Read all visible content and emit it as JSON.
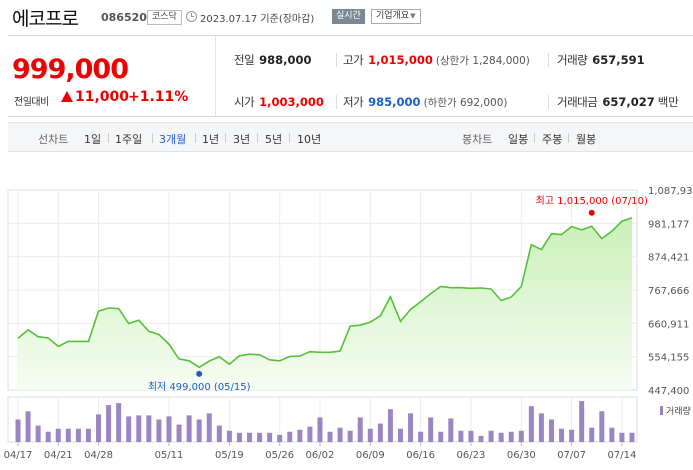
{
  "header": {
    "stock_name": "에코프로",
    "stock_code": "086520",
    "market": "코스닥",
    "date": "2023.07.17  기준(장마감)",
    "realtime": "실시간",
    "company_info": "기업개요"
  },
  "price": {
    "current": "999,000",
    "change_label": "전일대비",
    "change_amount": "11,000",
    "change_percent": "+1.11%",
    "direction": "up"
  },
  "quote": {
    "prev_close_label": "전일",
    "prev_close": "988,000",
    "high_label": "고가",
    "high": "1,015,000",
    "upper_limit": "(상한가 1,284,000)",
    "volume_label": "거래량",
    "volume": "657,591",
    "open_label": "시가",
    "open": "1,003,000",
    "low_label": "저가",
    "low": "985,000",
    "lower_limit": "(하한가 692,000)",
    "value_label": "거래대금",
    "value": "657,027",
    "value_unit": "백만"
  },
  "period_bar": {
    "line_chart_label": "선차트",
    "line_periods": [
      "1일",
      "1주일",
      "3개월",
      "1년",
      "3년",
      "5년",
      "10년"
    ],
    "active_period": "3개월",
    "candle_chart_label": "봉차트",
    "candle_periods": [
      "일봉",
      "주봉",
      "월봉"
    ]
  },
  "colors": {
    "up": "#ee0000",
    "down": "#1a5fc9",
    "line": "#55c038",
    "fill_top": "#c9f0b8",
    "fill_bottom": "#f7fdf4",
    "volume_bar": "#9b86c4"
  },
  "chart_data": {
    "type": "area",
    "y_ticks": [
      "1,087,932",
      "981,177",
      "874,421",
      "767,666",
      "660,911",
      "554,155",
      "447,400"
    ],
    "ylim": [
      447400,
      1087932
    ],
    "grid": true,
    "x_ticks": [
      {
        "label": "04/17",
        "i": 0
      },
      {
        "label": "04/21",
        "i": 4
      },
      {
        "label": "04/28",
        "i": 8
      },
      {
        "label": "05/11",
        "i": 15
      },
      {
        "label": "05/19",
        "i": 21
      },
      {
        "label": "05/26",
        "i": 26
      },
      {
        "label": "06/02",
        "i": 30
      },
      {
        "label": "06/09",
        "i": 35
      },
      {
        "label": "06/16",
        "i": 40
      },
      {
        "label": "06/23",
        "i": 45
      },
      {
        "label": "06/30",
        "i": 50
      },
      {
        "label": "07/07",
        "i": 55
      },
      {
        "label": "07/14",
        "i": 60
      }
    ],
    "values": [
      613000,
      640000,
      618000,
      614000,
      587000,
      603000,
      603000,
      603000,
      700000,
      710000,
      708000,
      660000,
      671000,
      635000,
      625000,
      594000,
      547000,
      541000,
      520000,
      540000,
      554000,
      530000,
      557000,
      562000,
      560000,
      544000,
      541000,
      555000,
      556000,
      570000,
      568000,
      568000,
      572000,
      652000,
      655000,
      665000,
      685000,
      746000,
      667000,
      706000,
      730000,
      756000,
      779000,
      775000,
      775000,
      773000,
      774000,
      771000,
      734000,
      745000,
      779000,
      913000,
      897000,
      948000,
      945000,
      971000,
      960000,
      972000,
      932000,
      956000,
      988000,
      999000
    ],
    "max_annotation": "최고 1,015,000 (07/10)",
    "max_value": 1015000,
    "max_index": 57,
    "min_annotation": "최저 499,000 (05/15)",
    "min_value": 499000,
    "min_index": 18,
    "volume_legend": "거래량",
    "volumes": [
      22,
      30,
      16,
      10,
      13,
      13,
      13,
      13,
      27,
      36,
      38,
      25,
      26,
      26,
      22,
      25,
      17,
      26,
      22,
      28,
      16,
      11,
      9,
      9,
      9,
      9,
      7,
      10,
      12,
      15,
      24,
      10,
      14,
      11,
      24,
      13,
      18,
      32,
      13,
      28,
      10,
      24,
      10,
      23,
      11,
      11,
      6,
      11,
      9,
      10,
      11,
      35,
      28,
      22,
      13,
      12,
      40,
      14,
      30,
      14,
      9,
      9
    ]
  }
}
